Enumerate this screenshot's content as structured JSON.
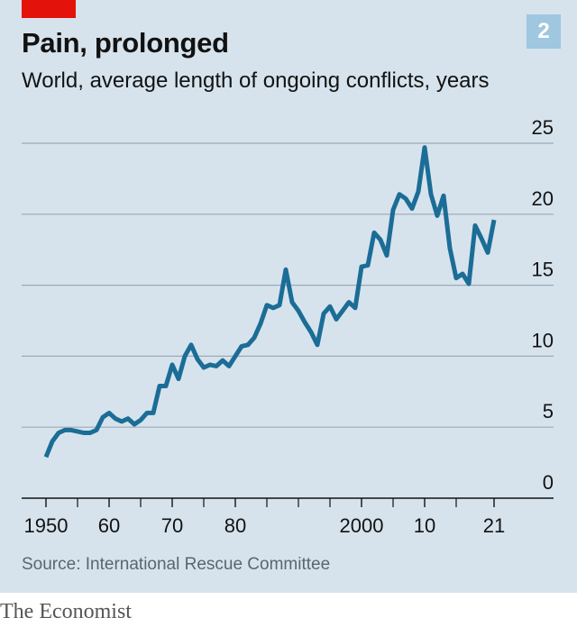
{
  "header": {
    "title": "Pain, prolonged",
    "subtitle": "World, average length of ongoing conflicts, years",
    "chart_number": "2"
  },
  "footer": {
    "source": "Source: International Rescue Committee",
    "brand": "The Economist"
  },
  "colors": {
    "background": "#d6e3ed",
    "line": "#1b6d96",
    "accent_red": "#e3120b",
    "badge": "#9fc7df"
  },
  "chart_data": {
    "type": "line",
    "title": "Pain, prolonged",
    "subtitle": "World, average length of ongoing conflicts, years",
    "xlabel": "",
    "ylabel": "years",
    "xlim": [
      1947,
      2030
    ],
    "ylim": [
      0,
      25
    ],
    "grid": true,
    "x_ticks": [
      1950,
      1960,
      1970,
      1980,
      2000,
      2010,
      2021
    ],
    "x_tick_labels": [
      "1950",
      "60",
      "70",
      "80",
      "2000",
      "10",
      "21"
    ],
    "x_minor_ticks": [
      1955,
      1965,
      1975,
      1985,
      1990,
      1995,
      2005,
      2015
    ],
    "y_ticks": [
      0,
      5,
      10,
      15,
      20,
      25
    ],
    "y_tick_labels": [
      "0",
      "5",
      "10",
      "15",
      "20",
      "25"
    ],
    "series": [
      {
        "name": "Average length of ongoing conflicts",
        "x": [
          1950,
          1951,
          1952,
          1953,
          1954,
          1955,
          1956,
          1957,
          1958,
          1959,
          1960,
          1961,
          1962,
          1963,
          1964,
          1965,
          1966,
          1967,
          1968,
          1969,
          1970,
          1971,
          1972,
          1973,
          1974,
          1975,
          1976,
          1977,
          1978,
          1979,
          1980,
          1981,
          1982,
          1983,
          1984,
          1985,
          1986,
          1987,
          1988,
          1989,
          1990,
          1991,
          1992,
          1993,
          1994,
          1995,
          1996,
          1997,
          1998,
          1999,
          2000,
          2001,
          2002,
          2003,
          2004,
          2005,
          2006,
          2007,
          2008,
          2009,
          2010,
          2011,
          2012,
          2013,
          2014,
          2015,
          2016,
          2017,
          2018,
          2019,
          2020,
          2021
        ],
        "values": [
          2.9,
          4.0,
          4.6,
          4.8,
          4.8,
          4.7,
          4.6,
          4.6,
          4.8,
          5.7,
          6.0,
          5.6,
          5.4,
          5.6,
          5.2,
          5.5,
          6.0,
          6.0,
          7.9,
          7.9,
          9.4,
          8.4,
          10.0,
          10.8,
          9.8,
          9.2,
          9.4,
          9.3,
          9.7,
          9.3,
          10.0,
          10.7,
          10.8,
          11.3,
          12.3,
          13.6,
          13.4,
          13.6,
          16.1,
          13.8,
          13.2,
          12.4,
          11.7,
          10.8,
          13.0,
          13.5,
          12.6,
          13.2,
          13.8,
          13.4,
          16.3,
          16.4,
          18.7,
          18.2,
          17.1,
          20.3,
          21.4,
          21.1,
          20.4,
          21.6,
          24.7,
          21.4,
          19.9,
          21.3,
          17.6,
          15.5,
          15.8,
          15.1,
          19.2,
          18.3,
          17.3,
          19.6
        ]
      }
    ]
  }
}
